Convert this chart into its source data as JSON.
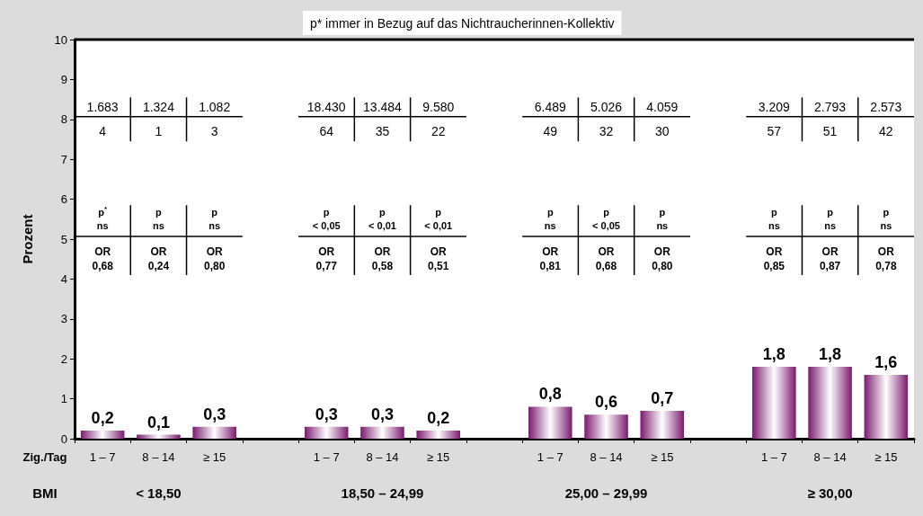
{
  "chart_data": {
    "type": "bar",
    "title": "p* immer in Bezug auf das Nichtraucherinnen-Kollektiv",
    "ylabel": "Prozent",
    "xlabel": "Zig./Tag",
    "categories": [
      "1 – 7",
      "8 – 14",
      "≥ 15",
      null,
      "1 – 7",
      "8 – 14",
      "≥ 15",
      null,
      "1 – 7",
      "8 – 14",
      "≥ 15",
      null,
      "1 – 7",
      "8 – 14",
      "≥ 15"
    ],
    "values": [
      0.2,
      0.1,
      0.3,
      null,
      0.3,
      0.3,
      0.2,
      null,
      0.8,
      0.6,
      0.7,
      null,
      1.8,
      1.8,
      1.6
    ],
    "value_labels": [
      "0,2",
      "0,1",
      "0,3",
      null,
      "0,3",
      "0,3",
      "0,2",
      null,
      "0,8",
      "0,6",
      "0,7",
      null,
      "1,8",
      "1,8",
      "1,6"
    ],
    "color": "#7b1a6f",
    "ylim": [
      0,
      10
    ],
    "yticks": [
      0,
      1,
      2,
      3,
      4,
      5,
      6,
      7,
      8,
      9,
      10
    ],
    "grid": false,
    "annotations": [
      "BMI",
      "< 18,50",
      "18,50 – 24,99",
      "25,00 – 29,99",
      "≥ 30,00",
      "1.683",
      "4",
      "p$^{*}$\nns",
      "OR\n0,68",
      "1.324",
      "1",
      "p\nns",
      "OR\n0,24",
      "1.082",
      "3",
      "p\nns",
      "OR\n0,80",
      "18.430",
      "64",
      "p\n< 0,05",
      "OR\n0,77",
      "13.484",
      "35",
      "p\n< 0,01",
      "OR\n0,58",
      "9.580",
      "22",
      "p\n< 0,01",
      "OR\n0,51",
      "6.489",
      "49",
      "p\nns",
      "OR\n0,81",
      "5.026",
      "32",
      "p\n< 0,05",
      "OR\n0,68",
      "4.059",
      "30",
      "p\nns",
      "OR\n0,80",
      "3.209",
      "57",
      "p\nns",
      "OR\n0,85",
      "2.793",
      "51",
      "p\nns",
      "OR\n0,87",
      "2.573",
      "42",
      "p\nns",
      "OR\n0,78"
    ]
  }
}
